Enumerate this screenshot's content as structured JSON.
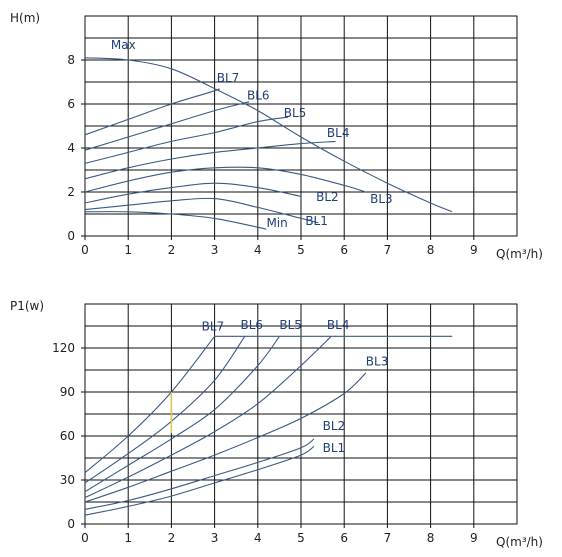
{
  "colors": {
    "curve": "#3a5a86",
    "label": "#1f3f7a",
    "grid": "#111111",
    "highlight": "#e0c84a"
  },
  "chart_data": [
    {
      "type": "line",
      "title": "",
      "ylabel": "H(m)",
      "xlabel": "Q(m³/h)",
      "xlim": [
        0,
        10
      ],
      "ylim": [
        0,
        10
      ],
      "xticks": [
        "0",
        "1",
        "2",
        "3",
        "4",
        "5",
        "6",
        "7",
        "8",
        "9"
      ],
      "yticks": [
        "0",
        "2",
        "4",
        "6",
        "8"
      ],
      "grid": true,
      "series": [
        {
          "name": "Max",
          "x": [
            0,
            1,
            2,
            3,
            4,
            5,
            6,
            7,
            8,
            8.5
          ],
          "y": [
            8.1,
            8.0,
            7.6,
            6.7,
            5.7,
            4.5,
            3.4,
            2.4,
            1.5,
            1.1
          ]
        },
        {
          "name": "BL7",
          "x": [
            0,
            1,
            2,
            3,
            3.1
          ],
          "y": [
            4.6,
            5.3,
            6.0,
            6.6,
            6.7
          ]
        },
        {
          "name": "BL6",
          "x": [
            0,
            1,
            2,
            3,
            3.8
          ],
          "y": [
            3.9,
            4.5,
            5.1,
            5.7,
            6.1
          ]
        },
        {
          "name": "BL5",
          "x": [
            0,
            1,
            2,
            3,
            4,
            4.7
          ],
          "y": [
            3.3,
            3.8,
            4.3,
            4.7,
            5.2,
            5.4
          ]
        },
        {
          "name": "BL4",
          "x": [
            0,
            1,
            2,
            3,
            4,
            5,
            5.8
          ],
          "y": [
            2.6,
            3.1,
            3.5,
            3.8,
            4.0,
            4.2,
            4.3
          ]
        },
        {
          "name": "BL3",
          "x": [
            0,
            1,
            2,
            3,
            4,
            5,
            6,
            6.5
          ],
          "y": [
            2.0,
            2.5,
            2.9,
            3.1,
            3.1,
            2.8,
            2.3,
            2.0
          ]
        },
        {
          "name": "BL2",
          "x": [
            0,
            1,
            2,
            3,
            4,
            5
          ],
          "y": [
            1.5,
            1.9,
            2.2,
            2.4,
            2.2,
            1.8
          ]
        },
        {
          "name": "BL1",
          "x": [
            0,
            1,
            2,
            3,
            4,
            5,
            5.4
          ],
          "y": [
            1.2,
            1.4,
            1.6,
            1.7,
            1.3,
            0.8,
            0.6
          ]
        },
        {
          "name": "Min",
          "x": [
            0,
            1,
            2,
            3,
            4,
            4.2
          ],
          "y": [
            1.1,
            1.1,
            1.0,
            0.8,
            0.4,
            0.3
          ]
        }
      ],
      "annotations": [
        {
          "text": "Max",
          "x": 0.6,
          "y": 8.5
        },
        {
          "text": "BL7",
          "x": 3.05,
          "y": 7.0
        },
        {
          "text": "BL6",
          "x": 3.75,
          "y": 6.2
        },
        {
          "text": "BL5",
          "x": 4.6,
          "y": 5.4
        },
        {
          "text": "BL4",
          "x": 5.6,
          "y": 4.5
        },
        {
          "text": "BL3",
          "x": 6.6,
          "y": 1.5
        },
        {
          "text": "BL2",
          "x": 5.35,
          "y": 1.6
        },
        {
          "text": "BL1",
          "x": 5.1,
          "y": 0.5
        },
        {
          "text": "Min",
          "x": 4.2,
          "y": 0.4
        }
      ]
    },
    {
      "type": "line",
      "title": "",
      "ylabel": "P1(w)",
      "xlabel": "Q(m³/h)",
      "xlim": [
        0,
        10
      ],
      "ylim": [
        0,
        150
      ],
      "xticks": [
        "0",
        "1",
        "2",
        "3",
        "4",
        "5",
        "6",
        "7",
        "8",
        "9"
      ],
      "yticks": [
        "0",
        "30",
        "60",
        "90",
        "120"
      ],
      "grid": true,
      "series": [
        {
          "name": "BL7",
          "x": [
            0,
            1,
            2,
            3
          ],
          "y": [
            35,
            60,
            90,
            128
          ]
        },
        {
          "name": "BL6",
          "x": [
            0,
            1,
            2,
            3,
            3.7
          ],
          "y": [
            28,
            48,
            70,
            98,
            128
          ]
        },
        {
          "name": "BL5",
          "x": [
            0,
            1,
            2,
            3,
            4,
            4.5
          ],
          "y": [
            22,
            40,
            58,
            78,
            108,
            128
          ]
        },
        {
          "name": "BL4",
          "x": [
            0,
            1,
            2,
            3,
            4,
            5,
            5.7
          ],
          "y": [
            18,
            32,
            47,
            63,
            82,
            108,
            128
          ]
        },
        {
          "name": "BL3",
          "x": [
            0,
            1,
            2,
            3,
            4,
            5,
            6,
            6.5
          ],
          "y": [
            15,
            25,
            36,
            47,
            59,
            72,
            89,
            103
          ]
        },
        {
          "name": "BL2",
          "x": [
            0,
            1,
            2,
            3,
            4,
            5,
            5.3
          ],
          "y": [
            10,
            16,
            24,
            33,
            42,
            52,
            58
          ]
        },
        {
          "name": "BL1",
          "x": [
            0,
            1,
            2,
            3,
            4,
            5,
            5.3
          ],
          "y": [
            6,
            12,
            19,
            28,
            37,
            47,
            53
          ]
        },
        {
          "name": "",
          "x": [
            3,
            8.5
          ],
          "y": [
            128,
            128
          ]
        }
      ],
      "annotations": [
        {
          "text": "BL7",
          "x": 2.7,
          "y": 132
        },
        {
          "text": "BL6",
          "x": 3.6,
          "y": 133
        },
        {
          "text": "BL5",
          "x": 4.5,
          "y": 133
        },
        {
          "text": "BL4",
          "x": 5.6,
          "y": 133
        },
        {
          "text": "BL3",
          "x": 6.5,
          "y": 108
        },
        {
          "text": "BL2",
          "x": 5.5,
          "y": 64
        },
        {
          "text": "BL1",
          "x": 5.5,
          "y": 49
        }
      ]
    }
  ]
}
